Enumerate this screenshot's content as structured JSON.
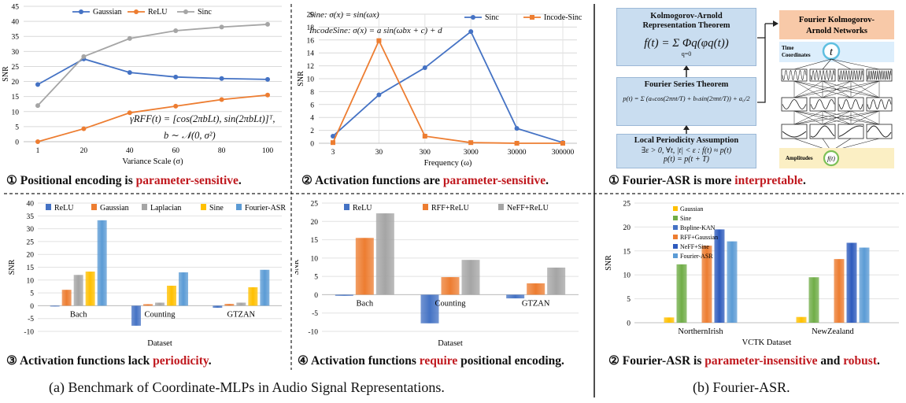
{
  "panel1": {
    "caption_num": "①",
    "caption_pre": "Positional encoding is ",
    "caption_red": "parameter-sensitive",
    "caption_post": ".",
    "formula1": "γRFF(t) = [cos(2πbLt), sin(2πbLt)]ᵀ,",
    "formula2": "b ∼ 𝒩(0, σ²)"
  },
  "panel2": {
    "caption_num": "②",
    "caption_pre": "Activation functions are ",
    "caption_red": "parameter-sensitive",
    "caption_post": ".",
    "formula1": "Sine: σ(x) = sin(ωx)",
    "formula2": "IncodeSine: σ(x) = a sin(ωbx + c) + d"
  },
  "panel3": {
    "caption_num": "③",
    "caption_pre": "Activation functions lack ",
    "caption_red": "periodicity",
    "caption_post": "."
  },
  "panel4": {
    "caption_num": "④",
    "caption_pre": "Activation functions ",
    "caption_red": "require",
    "caption_post": " positional encoding."
  },
  "panel5": {
    "caption_num": "①",
    "caption_pre": "Fourier-ASR is more ",
    "caption_red": "interpretable",
    "caption_post": ".",
    "kar_title1": "Kolmogorov-Arnold",
    "kar_title2": "Representation Theorem",
    "kar_formula": "f(t) = Σ Φq(φq(t))",
    "kar_sum": "q=0",
    "kar_top": "2",
    "fst_title": "Fourier Series Theorem",
    "fst_formula": "p(t) = Σ (aₙcos(2πnt/T) + bₙsin(2πnt/T)) + a₀/2",
    "lpa_title": "Local Periodicity Assumption",
    "lpa_formula1": "∃ε > 0, ∀t, |t| < ε : f(t) ≈ p(t)",
    "lpa_formula2": "p(t) = p(t + T)",
    "fkan_title1": "Fourier Kolmogorov-",
    "fkan_title2": "Arnold Networks",
    "time_label1": "Time",
    "time_label2": "Coordinates",
    "t_node": "t",
    "amp_label": "Amplitudes",
    "ft_node": "f(t)"
  },
  "panel6": {
    "caption_num": "②",
    "caption_pre": "Fourier-ASR is ",
    "caption_red": "parameter-insensitive",
    "caption_mid": " and ",
    "caption_red2": "robust",
    "caption_post": "."
  },
  "bottom": {
    "left": "(a) Benchmark of Coordinate-MLPs in Audio Signal Representations.",
    "right": "(b) Fourier-ASR."
  },
  "colors": {
    "blue": "#4472c4",
    "orange": "#ed7d31",
    "gray": "#a5a5a5",
    "yellow": "#ffc000",
    "lightblue": "#5b9bd5",
    "green": "#70ad47",
    "red": "#c0181e",
    "box": "#c9ddf0",
    "fkan": "#f8c9a8",
    "timeBox": "#dceefc",
    "ampBox": "#fbefc4"
  },
  "chart_data": [
    {
      "type": "line",
      "id": "c1",
      "xlabel": "Variance Scale (σ)",
      "ylabel": "SNR",
      "ylim": [
        0,
        45
      ],
      "yticks": [
        0,
        5,
        10,
        15,
        20,
        25,
        30,
        35,
        40,
        45
      ],
      "categories": [
        "1",
        "20",
        "40",
        "60",
        "80",
        "100"
      ],
      "legend": "top",
      "grid": true,
      "series": [
        {
          "name": "Gaussian",
          "color": "#4472c4",
          "values": [
            19,
            27.5,
            23,
            21.5,
            21,
            20.7
          ]
        },
        {
          "name": "ReLU",
          "color": "#ed7d31",
          "values": [
            0,
            4.3,
            9.6,
            11.8,
            14,
            15.5
          ]
        },
        {
          "name": "Sinc",
          "color": "#a5a5a5",
          "values": [
            12,
            28.3,
            34.3,
            36.9,
            38.1,
            39
          ]
        }
      ]
    },
    {
      "type": "line",
      "id": "c2",
      "xlabel": "Frequency (ω)",
      "ylabel": "SNR",
      "ylim": [
        0,
        20
      ],
      "yticks": [
        0,
        2,
        4,
        6,
        8,
        10,
        12,
        14,
        16,
        18,
        20
      ],
      "categories": [
        "3",
        "30",
        "300",
        "3000",
        "30000",
        "300000"
      ],
      "legend": "top-right",
      "grid": true,
      "series": [
        {
          "name": "Sinc",
          "color": "#4472c4",
          "values": [
            1.1,
            7.5,
            11.7,
            17.3,
            2.3,
            0.1
          ]
        },
        {
          "name": "Incode-Sinc",
          "color": "#ed7d31",
          "values": [
            0.1,
            15.9,
            1.1,
            0.1,
            0,
            0
          ]
        }
      ]
    },
    {
      "type": "bar",
      "id": "c3",
      "xlabel": "Dataset",
      "ylabel": "SNR",
      "ylim": [
        -10,
        40
      ],
      "yticks": [
        -10,
        -5,
        0,
        5,
        10,
        15,
        20,
        25,
        30,
        35,
        40
      ],
      "categories": [
        "Bach",
        "Counting",
        "GTZAN"
      ],
      "legend": "top",
      "series": [
        {
          "name": "ReLU",
          "color": "#4472c4",
          "values": [
            -0.3,
            -7.8,
            -0.8
          ]
        },
        {
          "name": "Gaussian",
          "color": "#ed7d31",
          "values": [
            6.2,
            0.6,
            0.7
          ]
        },
        {
          "name": "Laplacian",
          "color": "#a5a5a5",
          "values": [
            12,
            1.2,
            1.2
          ]
        },
        {
          "name": "Sine",
          "color": "#ffc000",
          "values": [
            13.3,
            7.8,
            7.2
          ]
        },
        {
          "name": "Fourier-ASR",
          "color": "#5b9bd5",
          "values": [
            33.3,
            13,
            14
          ]
        }
      ]
    },
    {
      "type": "bar",
      "id": "c4",
      "xlabel": "Dataset",
      "ylabel": "SNR",
      "ylim": [
        -10,
        25
      ],
      "yticks": [
        -10,
        -5,
        0,
        5,
        10,
        15,
        20,
        25
      ],
      "categories": [
        "Bach",
        "Counting",
        "GTZAN"
      ],
      "legend": "top",
      "series": [
        {
          "name": "ReLU",
          "color": "#4472c4",
          "values": [
            -0.3,
            -7.8,
            -1
          ]
        },
        {
          "name": "RFF+ReLU",
          "color": "#ed7d31",
          "values": [
            15.5,
            4.8,
            3.1
          ]
        },
        {
          "name": "NeFF+ReLU",
          "color": "#a5a5a5",
          "values": [
            22.2,
            9.5,
            7.4
          ]
        }
      ]
    },
    {
      "type": "bar",
      "id": "c6",
      "xlabel": "VCTK Dataset",
      "ylabel": "SNR",
      "ylim": [
        0,
        25
      ],
      "yticks": [
        0,
        5,
        10,
        15,
        20,
        25
      ],
      "categories": [
        "NorthernIrish",
        "NewZealand"
      ],
      "legend": "top-left",
      "series": [
        {
          "name": "Gaussian",
          "color": "#ffc000",
          "values": [
            1.1,
            1.2
          ]
        },
        {
          "name": "Sine",
          "color": "#70ad47",
          "values": [
            12.2,
            9.5
          ]
        },
        {
          "name": "Bspline-KAN",
          "color": "#4472c4",
          "values": [
            0,
            0
          ]
        },
        {
          "name": "RFF+Gaussian",
          "color": "#ed7d31",
          "values": [
            16.1,
            13.3
          ]
        },
        {
          "name": "NeFF+Sine",
          "color": "#2e5bbd",
          "values": [
            19.5,
            16.7
          ]
        },
        {
          "name": "Fourier-ASR",
          "color": "#5b9bd5",
          "values": [
            17,
            15.7
          ]
        }
      ]
    }
  ]
}
